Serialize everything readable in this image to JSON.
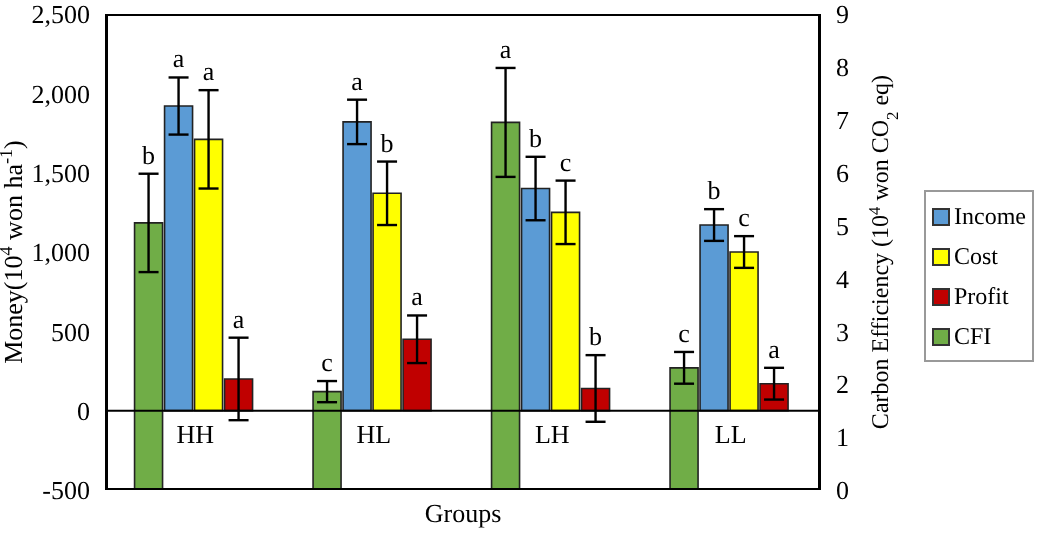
{
  "chart_data": {
    "type": "bar",
    "xlabel": "Groups",
    "ylabel": "Money(10$^{4}$ won ha$^{-1}$)",
    "y2label": "Carbon Efficiency (10$^{4}$ won CO$_{2}$ eq)",
    "categories": [
      "HH",
      "HL",
      "LH",
      "LL"
    ],
    "series": [
      {
        "name": "Income",
        "color": "#5b9bd5",
        "values": [
          1920,
          1820,
          1400,
          1170
        ],
        "errors": [
          180,
          140,
          200,
          100
        ],
        "value_labels": [
          "a",
          "a",
          "b",
          "b"
        ]
      },
      {
        "name": "Cost",
        "color": "#ffff00",
        "values": [
          1710,
          1370,
          1250,
          1000
        ],
        "errors": [
          310,
          200,
          200,
          100
        ],
        "value_labels": [
          "a",
          "b",
          "c",
          "c"
        ]
      },
      {
        "name": "Profit",
        "color": "#c00000",
        "values": [
          200,
          450,
          140,
          170
        ],
        "errors": [
          260,
          150,
          210,
          100
        ],
        "value_labels": [
          "a",
          "a",
          "b",
          "a"
        ]
      },
      {
        "name": "CFI",
        "color": "#70ad47",
        "axis": "y2",
        "values": [
          5.05,
          1.86,
          6.95,
          2.31
        ],
        "errors": [
          0.93,
          0.2,
          1.03,
          0.3
        ],
        "value_labels": [
          "b",
          "c",
          "a",
          "c"
        ]
      }
    ],
    "ylim": [
      -500,
      2500
    ],
    "yticks": [
      -500,
      0,
      500,
      {
        "value": 1000,
        "label": "1,000"
      },
      {
        "value": 1500,
        "label": "1,500"
      },
      {
        "value": 2000,
        "label": "2,000"
      },
      {
        "value": 2500,
        "label": "2,500"
      }
    ],
    "y2lim": [
      0,
      9
    ],
    "y2ticks": [
      0,
      1,
      2,
      3,
      4,
      5,
      6,
      7,
      8,
      9
    ],
    "legend": "right"
  }
}
